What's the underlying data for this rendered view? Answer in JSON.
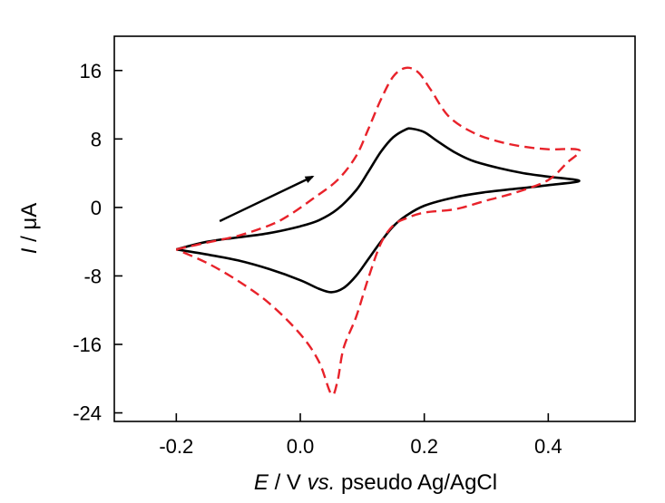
{
  "chart_data": {
    "type": "line",
    "title": "",
    "xlabel": {
      "var": "E",
      "unit": " / V ",
      "vs": "vs.",
      "ref": " pseudo Ag/AgCl"
    },
    "ylabel": {
      "var": "I",
      "unit": " / μA"
    },
    "xlim": [
      -0.3,
      0.54
    ],
    "ylim": [
      -25,
      20
    ],
    "x_ticks": [
      -0.2,
      0.0,
      0.2,
      0.4
    ],
    "x_tick_labels": [
      "-0.2",
      "0.0",
      "0.2",
      "0.4"
    ],
    "y_ticks": [
      -24,
      -16,
      -8,
      0,
      8,
      16
    ],
    "y_tick_labels": [
      "-24",
      "-16",
      "-8",
      "0",
      "8",
      "16"
    ],
    "grid": false,
    "legend": "none",
    "annotations": [
      {
        "type": "arrow",
        "from": [
          -0.13,
          -1.6
        ],
        "to": [
          0.02,
          3.6
        ],
        "meaning": "scan direction"
      }
    ],
    "series": [
      {
        "color": "#000000",
        "style": "solid",
        "x": [
          -0.2,
          -0.15,
          -0.1,
          -0.05,
          0.0,
          0.03,
          0.06,
          0.09,
          0.11,
          0.13,
          0.15,
          0.17,
          0.18,
          0.2,
          0.22,
          0.25,
          0.28,
          0.32,
          0.36,
          0.4,
          0.45,
          0.4,
          0.35,
          0.3,
          0.25,
          0.2,
          0.17,
          0.15,
          0.13,
          0.11,
          0.09,
          0.07,
          0.05,
          0.03,
          0.0,
          -0.05,
          -0.1,
          -0.15,
          -0.2
        ],
        "y": [
          -4.9,
          -4.0,
          -3.5,
          -3.0,
          -2.2,
          -1.5,
          -0.2,
          2.0,
          4.2,
          6.5,
          8.2,
          9.1,
          9.2,
          8.8,
          7.8,
          6.4,
          5.4,
          4.6,
          4.0,
          3.6,
          3.1,
          2.6,
          2.2,
          1.8,
          1.2,
          0.2,
          -1.0,
          -2.2,
          -4.0,
          -6.0,
          -8.0,
          -9.4,
          -9.9,
          -9.5,
          -8.5,
          -7.2,
          -6.2,
          -5.5,
          -4.9
        ]
      },
      {
        "color": "#e8222a",
        "style": "dashed",
        "x": [
          -0.2,
          -0.15,
          -0.1,
          -0.05,
          -0.02,
          0.02,
          0.06,
          0.09,
          0.11,
          0.13,
          0.15,
          0.17,
          0.19,
          0.21,
          0.24,
          0.28,
          0.32,
          0.36,
          0.4,
          0.45,
          0.43,
          0.4,
          0.35,
          0.3,
          0.25,
          0.2,
          0.17,
          0.15,
          0.13,
          0.11,
          0.09,
          0.07,
          0.06,
          0.05,
          0.03,
          0.0,
          -0.05,
          -0.1,
          -0.15,
          -0.2
        ],
        "y": [
          -4.9,
          -4.1,
          -3.3,
          -2.1,
          -1.0,
          1.0,
          3.2,
          6.0,
          9.2,
          12.6,
          15.3,
          16.3,
          15.8,
          13.8,
          10.6,
          8.7,
          7.7,
          7.1,
          6.8,
          6.7,
          5.2,
          3.2,
          1.8,
          0.8,
          -0.2,
          -0.6,
          -1.3,
          -2.1,
          -4.2,
          -8.2,
          -12.8,
          -16.4,
          -20.3,
          -21.8,
          -18.0,
          -14.8,
          -11.2,
          -8.6,
          -6.5,
          -4.9
        ]
      }
    ]
  }
}
